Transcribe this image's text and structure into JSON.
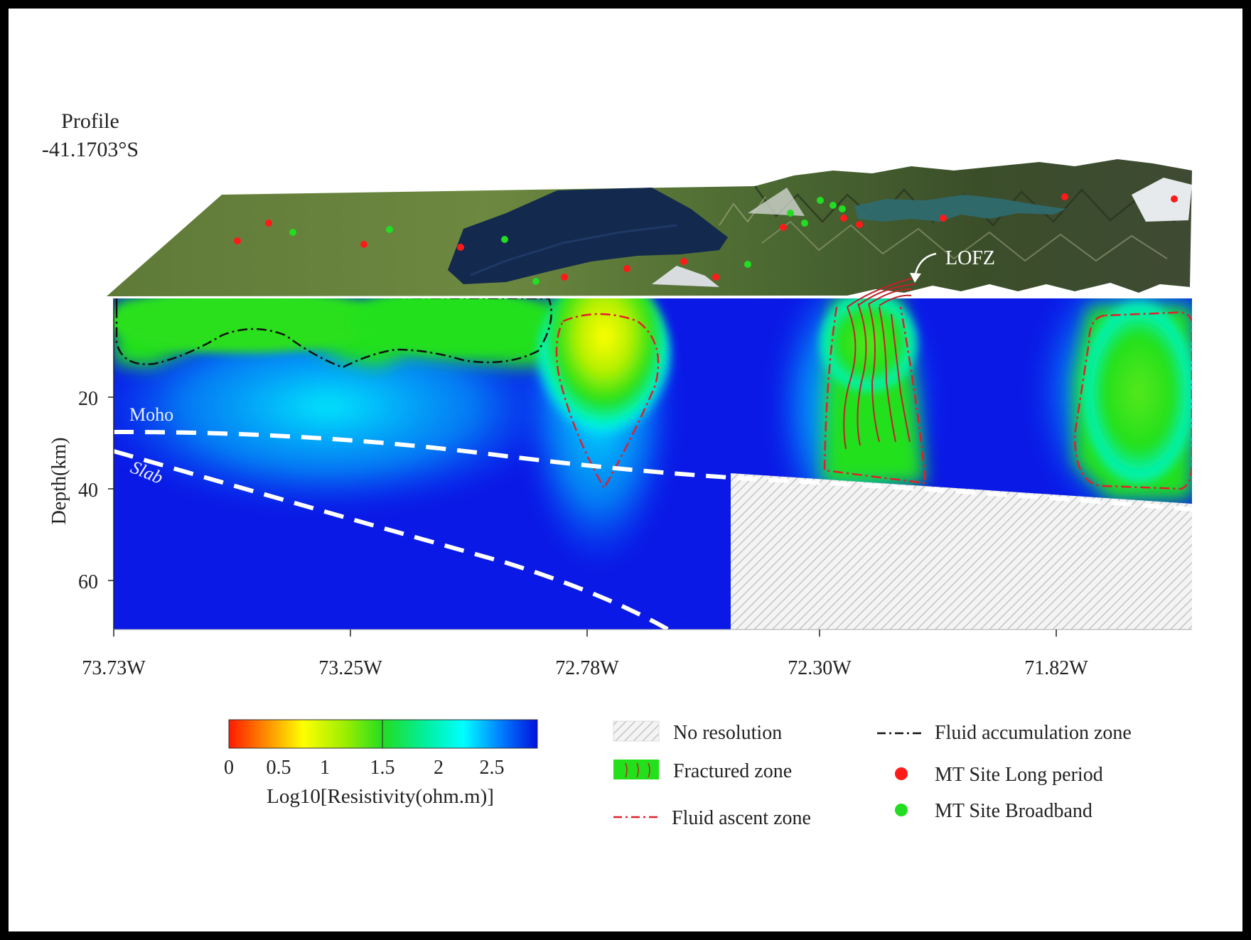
{
  "profile": {
    "label": "Profile",
    "latitude": "-41.1703°S"
  },
  "terrain": {
    "fault_label": "LOFZ"
  },
  "section": {
    "ylabel": "Depth(km)",
    "y_ticks": [
      "20",
      "40",
      "60"
    ],
    "x_ticks": [
      "73.73W",
      "73.25W",
      "72.78W",
      "72.30W",
      "71.82W"
    ],
    "moho_label": "Moho",
    "slab_label": "Slab"
  },
  "colorbar": {
    "ticks": [
      "0",
      "0.5",
      "1",
      "1.5",
      "2",
      "2.5"
    ],
    "label": "Log10[Resistivity(ohm.m)]"
  },
  "legend": {
    "no_resolution": "No resolution",
    "fractured": "Fractured zone",
    "fluid_ascent": "Fluid ascent  zone",
    "fluid_accumulation": "Fluid accumulation  zone",
    "mt_long": "MT Site Long period",
    "mt_broadband": "MT Site Broadband"
  },
  "colors": {
    "mt_long": "#ff1a1a",
    "mt_broadband": "#22dd22",
    "resistive": "#0a19e6",
    "conductive": "#22e01a"
  }
}
